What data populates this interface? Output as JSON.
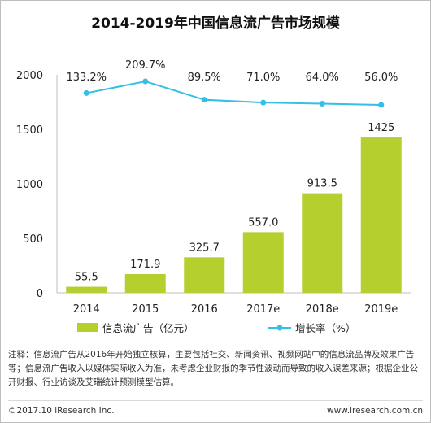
{
  "title": "2014-2019年中国信息流广告市场规模",
  "chart_data": {
    "type": "bar",
    "categories": [
      "2014",
      "2015",
      "2016",
      "2017e",
      "2018e",
      "2019e"
    ],
    "series": [
      {
        "name": "信息流广告（亿元）",
        "type": "bar",
        "values": [
          55.5,
          171.9,
          325.7,
          557.0,
          913.5,
          1425
        ],
        "labels": [
          "55.5",
          "171.9",
          "325.7",
          "557.0",
          "913.5",
          "1425"
        ],
        "color": "#b5cf2f"
      },
      {
        "name": "增长率（%）",
        "type": "line",
        "values": [
          133.2,
          209.7,
          89.5,
          71.0,
          64.0,
          56.0
        ],
        "labels": [
          "133.2%",
          "209.7%",
          "89.5%",
          "71.0%",
          "64.0%",
          "56.0%"
        ],
        "color": "#33bfe6"
      }
    ],
    "yticks": [
      "0",
      "500",
      "1000",
      "1500",
      "2000"
    ],
    "ylim": [
      0,
      2000
    ],
    "grid": false,
    "legend": "bottom"
  },
  "note": "注释：信息流广告从2016年开始独立核算，主要包括社交、新闻资讯、视频网站中的信息流品牌及效果广告等；信息流广告收入以媒体实际收入为准，未考虑企业财报的季节性波动而导致的收入误差来源；根据企业公开财报、行业访谈及艾瑞统计预测模型估算。",
  "footer": {
    "copyright": "©2017.10 iResearch Inc.",
    "website": "www.iresearch.com.cn"
  }
}
